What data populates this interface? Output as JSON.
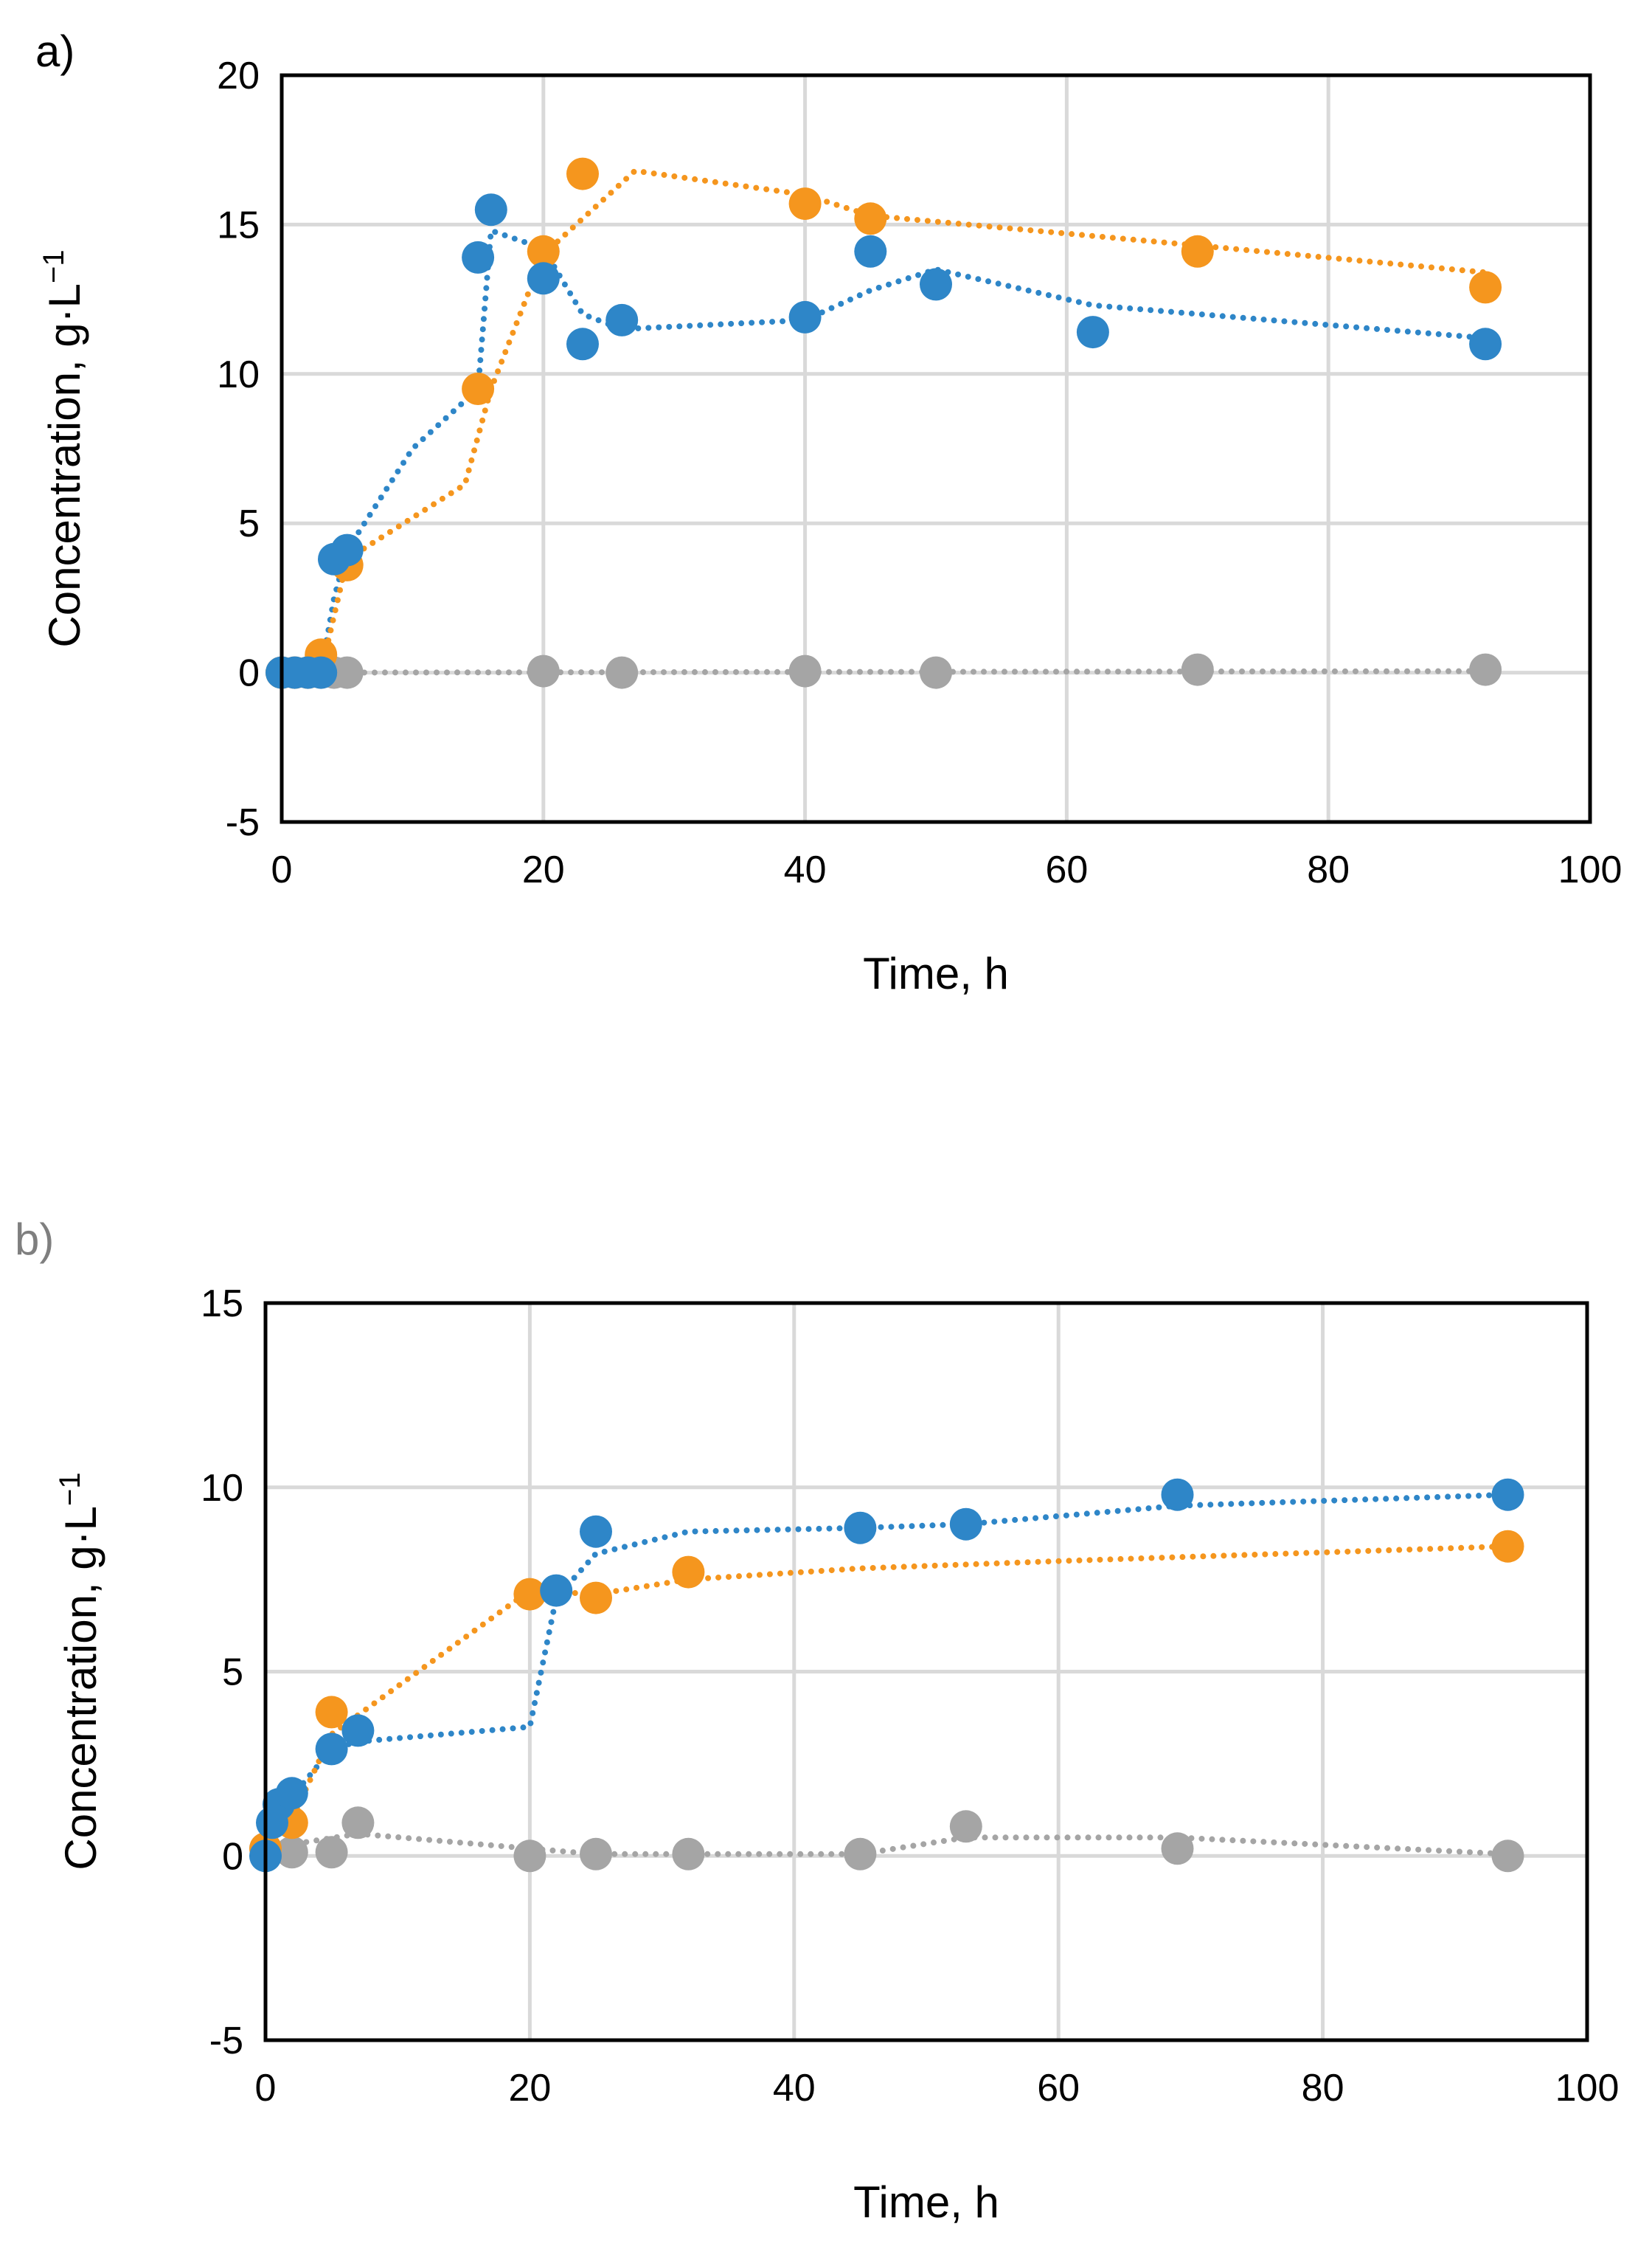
{
  "chart_data": [
    {
      "type": "scatter",
      "panel_label": "a)",
      "xlabel": "Time, h",
      "ylabel": "Concentration, g·L",
      "ylabel_exp": "−1",
      "xlim": [
        0,
        100
      ],
      "ylim": [
        -5,
        20
      ],
      "xticks": [
        0,
        20,
        40,
        60,
        80,
        100
      ],
      "yticks": [
        -5,
        0,
        5,
        10,
        15,
        20
      ],
      "grid": true,
      "series": [
        {
          "name": "blue",
          "color": "#2e86c8",
          "x": [
            0,
            1,
            2,
            3,
            4,
            5,
            15,
            16,
            20,
            23,
            26,
            40,
            45,
            50,
            62,
            92
          ],
          "y": [
            0,
            0,
            0,
            0,
            3.8,
            4.1,
            13.9,
            15.5,
            13.2,
            11.0,
            11.8,
            11.9,
            14.1,
            13.0,
            11.4,
            11.0
          ],
          "trend_x": [
            0,
            3,
            4,
            5,
            10,
            15,
            16,
            20,
            23,
            26,
            40,
            45,
            50,
            62,
            92
          ],
          "trend_y": [
            0,
            0,
            2.5,
            4.1,
            7.5,
            9.5,
            14.8,
            14.2,
            12.0,
            11.5,
            11.8,
            12.8,
            13.5,
            12.3,
            11.2
          ]
        },
        {
          "name": "orange",
          "color": "#f5961e",
          "x": [
            0,
            1,
            2,
            3,
            5,
            15,
            20,
            23,
            40,
            45,
            70,
            92
          ],
          "y": [
            0,
            0,
            0,
            0.6,
            3.6,
            9.5,
            14.1,
            16.7,
            15.7,
            15.2,
            14.1,
            12.9
          ],
          "trend_x": [
            0,
            3,
            5,
            14,
            16,
            20,
            27,
            40,
            45,
            70,
            92
          ],
          "trend_y": [
            0,
            0,
            3.8,
            6.3,
            9.5,
            14.0,
            16.8,
            16.0,
            15.3,
            14.3,
            13.4
          ]
        },
        {
          "name": "gray",
          "color": "#a5a5a5",
          "x": [
            0,
            1,
            2,
            3,
            4,
            5,
            20,
            26,
            40,
            50,
            70,
            92
          ],
          "y": [
            0,
            0,
            0,
            0,
            0,
            0,
            0.05,
            0,
            0.05,
            0,
            0.1,
            0.1
          ],
          "trend_x": [
            0,
            92
          ],
          "trend_y": [
            0,
            0.05
          ]
        }
      ]
    },
    {
      "type": "scatter",
      "panel_label": "b)",
      "xlabel": "Time, h",
      "ylabel": "Concentration, g·L",
      "ylabel_exp": "−1",
      "xlim": [
        0,
        100
      ],
      "ylim": [
        -5,
        15
      ],
      "xticks": [
        0,
        20,
        40,
        60,
        80,
        100
      ],
      "yticks": [
        -5,
        0,
        5,
        10,
        15
      ],
      "grid": true,
      "series": [
        {
          "name": "blue",
          "color": "#2e86c8",
          "x": [
            0,
            0.5,
            1,
            2,
            5,
            7,
            22,
            25,
            45,
            53,
            69,
            94
          ],
          "y": [
            0,
            0.9,
            1.4,
            1.7,
            2.9,
            3.4,
            7.2,
            8.8,
            8.9,
            9.0,
            9.8,
            9.8
          ],
          "trend_x": [
            0,
            2,
            5,
            7,
            20,
            22,
            25,
            32,
            45,
            53,
            69,
            94
          ],
          "trend_y": [
            0,
            1.6,
            2.9,
            3.1,
            3.5,
            7.0,
            8.2,
            8.8,
            8.9,
            9.0,
            9.5,
            9.8
          ]
        },
        {
          "name": "orange",
          "color": "#f5961e",
          "x": [
            0,
            2,
            5,
            20,
            25,
            32,
            94
          ],
          "y": [
            0.2,
            0.9,
            3.9,
            7.1,
            7.0,
            7.7,
            8.4
          ],
          "trend_x": [
            0,
            2,
            5,
            20,
            25,
            32,
            45,
            60,
            94
          ],
          "trend_y": [
            0.2,
            1.0,
            3.3,
            7.2,
            7.1,
            7.5,
            7.8,
            8.0,
            8.4
          ]
        },
        {
          "name": "gray",
          "color": "#a5a5a5",
          "x": [
            0,
            2,
            5,
            7,
            20,
            25,
            32,
            45,
            53,
            69,
            94
          ],
          "y": [
            0.2,
            0.1,
            0.1,
            0.9,
            0,
            0.05,
            0.05,
            0.05,
            0.8,
            0.2,
            0
          ],
          "trend_x": [
            0,
            7,
            20,
            25,
            32,
            45,
            53,
            69,
            94
          ],
          "trend_y": [
            0.2,
            0.6,
            0.2,
            0.05,
            0.05,
            0.05,
            0.5,
            0.5,
            0.05
          ]
        }
      ]
    }
  ]
}
